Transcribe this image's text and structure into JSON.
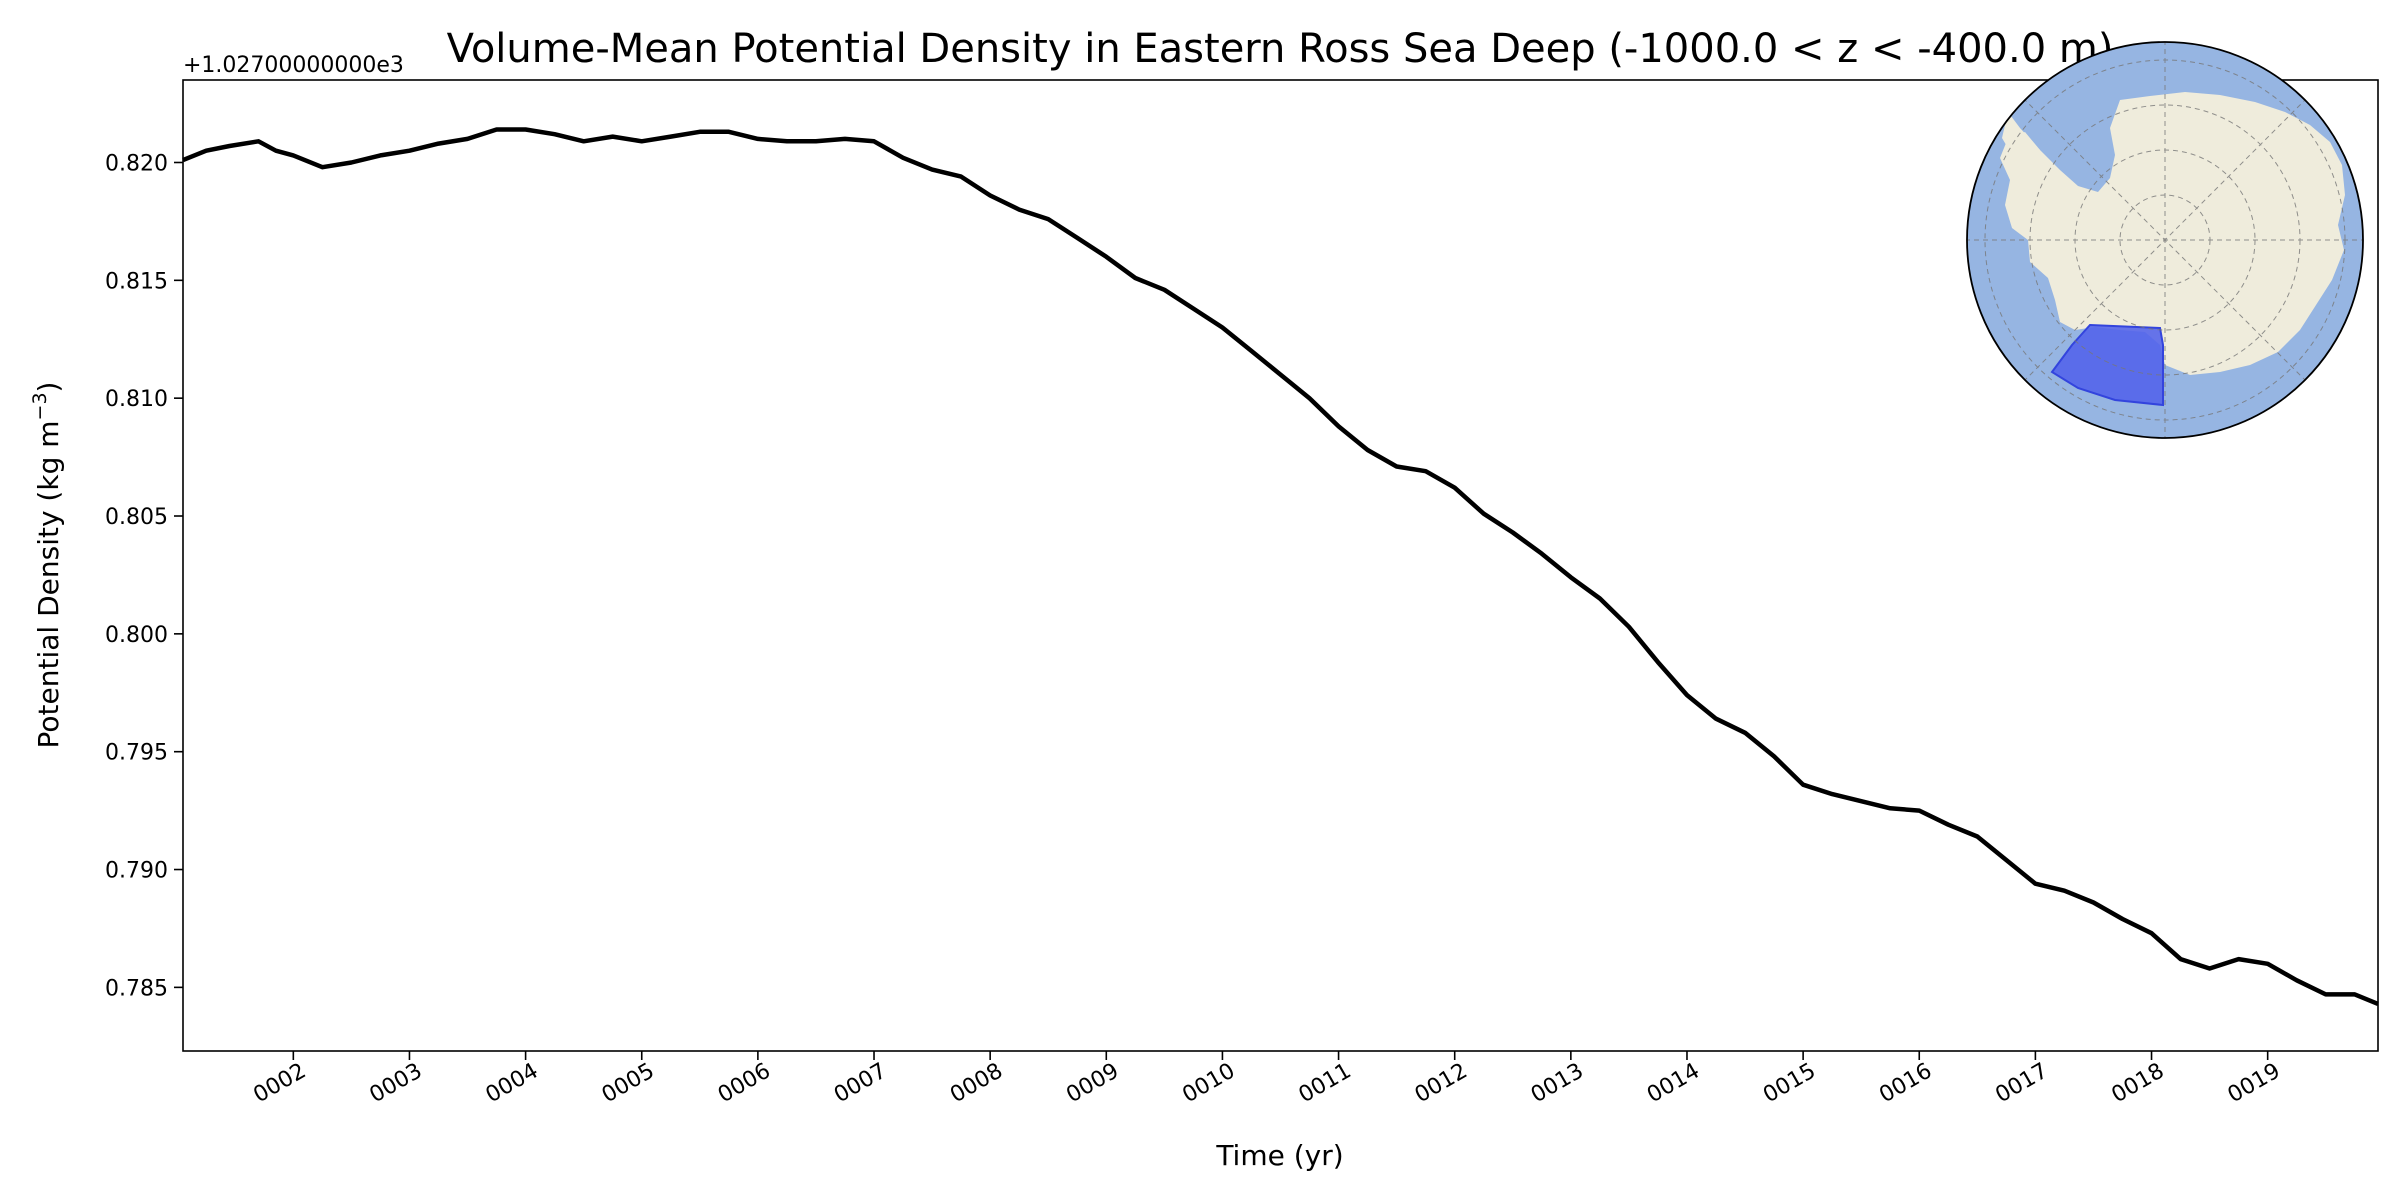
{
  "chart_data": {
    "type": "line",
    "title": "Volume-Mean Potential Density in Eastern Ross Sea Deep (-1000.0 < z < -400.0 m)",
    "xlabel": "Time (yr)",
    "ylabel": "Potential Density (kg m",
    "ylabel_superscript": "−3",
    "ylabel_suffix": ")",
    "offset_text": "+1.02700000000e3",
    "xlim": [
      1.05,
      19.95
    ],
    "ylim": [
      0.7823,
      0.8235
    ],
    "x_ticks": [
      2,
      3,
      4,
      5,
      6,
      7,
      8,
      9,
      10,
      11,
      12,
      13,
      14,
      15,
      16,
      17,
      18,
      19
    ],
    "x_tick_labels": [
      "0002",
      "0003",
      "0004",
      "0005",
      "0006",
      "0007",
      "0008",
      "0009",
      "0010",
      "0011",
      "0012",
      "0013",
      "0014",
      "0015",
      "0016",
      "0017",
      "0018",
      "0019"
    ],
    "y_ticks": [
      0.785,
      0.79,
      0.795,
      0.8,
      0.805,
      0.81,
      0.815,
      0.82
    ],
    "y_tick_labels": [
      "0.785",
      "0.790",
      "0.795",
      "0.800",
      "0.805",
      "0.810",
      "0.815",
      "0.820"
    ],
    "grid": false,
    "series": [
      {
        "color": "#000000",
        "x": [
          1.05,
          1.25,
          1.45,
          1.7,
          1.85,
          2.0,
          2.25,
          2.5,
          2.75,
          3.0,
          3.25,
          3.5,
          3.75,
          4.0,
          4.25,
          4.5,
          4.75,
          5.0,
          5.25,
          5.5,
          5.75,
          6.0,
          6.25,
          6.5,
          6.75,
          7.0,
          7.25,
          7.5,
          7.75,
          8.0,
          8.25,
          8.5,
          8.75,
          9.0,
          9.25,
          9.5,
          9.75,
          10.0,
          10.25,
          10.5,
          10.75,
          11.0,
          11.25,
          11.5,
          11.75,
          12.0,
          12.25,
          12.5,
          12.75,
          13.0,
          13.25,
          13.5,
          13.75,
          14.0,
          14.25,
          14.5,
          14.75,
          15.0,
          15.25,
          15.5,
          15.75,
          16.0,
          16.25,
          16.5,
          16.75,
          17.0,
          17.25,
          17.5,
          17.75,
          18.0,
          18.25,
          18.5,
          18.75,
          19.0,
          19.25,
          19.5,
          19.75,
          19.95
        ],
        "y": [
          0.8201,
          0.8205,
          0.8207,
          0.8209,
          0.8205,
          0.8203,
          0.8198,
          0.82,
          0.8203,
          0.8205,
          0.8208,
          0.821,
          0.8214,
          0.8214,
          0.8212,
          0.8209,
          0.8211,
          0.8209,
          0.8211,
          0.8213,
          0.8213,
          0.821,
          0.8209,
          0.8209,
          0.821,
          0.8209,
          0.8202,
          0.8197,
          0.8194,
          0.8186,
          0.818,
          0.8176,
          0.8168,
          0.816,
          0.8151,
          0.8146,
          0.8138,
          0.813,
          0.812,
          0.811,
          0.81,
          0.8088,
          0.8078,
          0.8071,
          0.8069,
          0.8062,
          0.8051,
          0.8043,
          0.8034,
          0.8024,
          0.8015,
          0.8003,
          0.7988,
          0.7974,
          0.7964,
          0.7958,
          0.7948,
          0.7936,
          0.7932,
          0.7929,
          0.7926,
          0.7925,
          0.7919,
          0.7914,
          0.7904,
          0.7894,
          0.7891,
          0.7886,
          0.7879,
          0.7873,
          0.7862,
          0.7858,
          0.7862,
          0.786,
          0.7853,
          0.7847,
          0.7847,
          0.7843
        ]
      }
    ],
    "inset_map": {
      "projection": "south-polar-stereographic",
      "ocean_color": "#96b5e2",
      "land_color": "#efecdc",
      "region_color": "#5262ea",
      "region": "Eastern Ross Sea"
    }
  }
}
